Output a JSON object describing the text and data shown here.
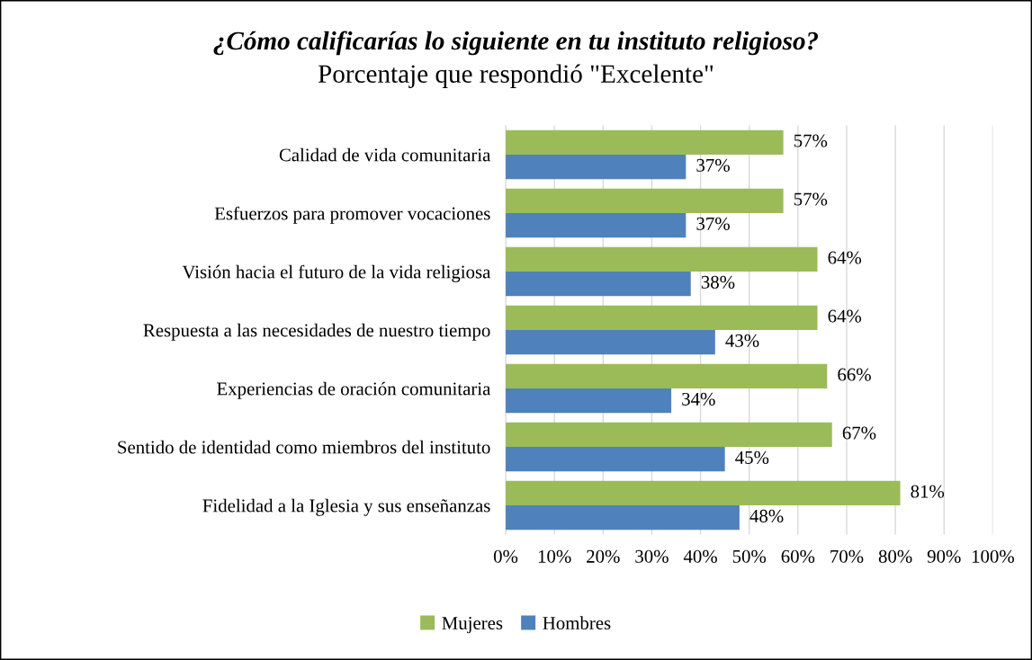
{
  "chart_data": {
    "type": "bar",
    "orientation": "horizontal",
    "title": "¿Cómo calificarías lo siguiente en tu instituto religioso?",
    "subtitle": "Porcentaje que respondió \"Excelente\"",
    "categories": [
      "Calidad de vida comunitaria",
      "Esfuerzos para promover vocaciones",
      "Visión hacia el futuro de la vida religiosa",
      "Respuesta a las necesidades de nuestro tiempo",
      "Experiencias de oración comunitaria",
      "Sentido de identidad como miembros del instituto",
      "Fidelidad a la Iglesia y sus enseñanzas"
    ],
    "series": [
      {
        "name": "Mujeres",
        "color": "#9bbb59",
        "values": [
          57,
          57,
          64,
          64,
          66,
          67,
          81
        ],
        "value_labels": [
          "57%",
          "57%",
          "64%",
          "64%",
          "66%",
          "67%",
          "81%"
        ]
      },
      {
        "name": "Hombres",
        "color": "#4f81bd",
        "values": [
          37,
          37,
          38,
          43,
          34,
          45,
          48
        ],
        "value_labels": [
          "37%",
          "37%",
          "38%",
          "43%",
          "34%",
          "45%",
          "48%"
        ]
      }
    ],
    "xlim": [
      0,
      100
    ],
    "xticks": [
      {
        "value": 0,
        "label": "0%"
      },
      {
        "value": 10,
        "label": "10%"
      },
      {
        "value": 20,
        "label": "20%"
      },
      {
        "value": 30,
        "label": "30%"
      },
      {
        "value": 40,
        "label": "40%"
      },
      {
        "value": 50,
        "label": "50%"
      },
      {
        "value": 60,
        "label": "60%"
      },
      {
        "value": 70,
        "label": "70%"
      },
      {
        "value": 80,
        "label": "80%"
      },
      {
        "value": 90,
        "label": "90%"
      },
      {
        "value": 100,
        "label": "100%"
      }
    ],
    "grid": "x",
    "legend": "bottom"
  }
}
